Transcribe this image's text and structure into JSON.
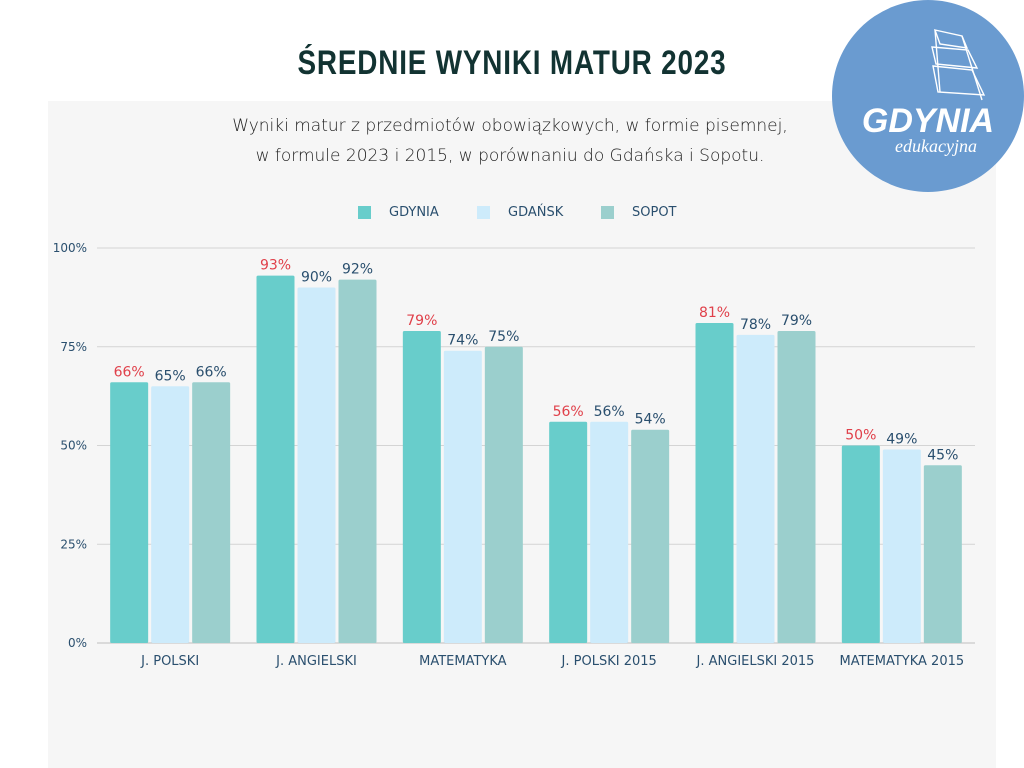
{
  "header": {
    "title": "ŚREDNIE WYNIKI MATUR 2023",
    "subtitle_line1": "Wyniki matur z przedmiotów obowiązkowych, w formie pisemnej,",
    "subtitle_line2": "w formule 2023 i 2015, w porównaniu do Gdańska i Sopotu."
  },
  "logo": {
    "text_main": "GDYNIA",
    "text_sub": "edukacyjna",
    "icon": "sailing-ship-icon",
    "background_color": "#6a9bd0"
  },
  "colors": {
    "gdynia": "#68cdcb",
    "gdansk": "#cdebfb",
    "sopot": "#9bcfcd",
    "gdynia_label": "#e0404a",
    "other_label": "#2a4f6e",
    "axis_text": "#2a4f6e",
    "title": "#123332"
  },
  "chart_data": {
    "type": "bar",
    "title": "ŚREDNIE WYNIKI MATUR 2023",
    "subtitle": "Wyniki matur z przedmiotów obowiązkowych, w formie pisemnej, w formule 2023 i 2015, w porównaniu do Gdańska i Sopotu.",
    "xlabel": "",
    "ylabel": "",
    "categories": [
      "J. POLSKI",
      "J. ANGIELSKI",
      "MATEMATYKA",
      "J. POLSKI 2015",
      "J. ANGIELSKI 2015",
      "MATEMATYKA 2015"
    ],
    "series": [
      {
        "name": "GDYNIA",
        "values": [
          66,
          93,
          79,
          56,
          81,
          50
        ]
      },
      {
        "name": "GDAŃSK",
        "values": [
          65,
          90,
          74,
          56,
          78,
          49
        ]
      },
      {
        "name": "SOPOT",
        "values": [
          66,
          92,
          75,
          54,
          79,
          45
        ]
      }
    ],
    "value_suffix": "%",
    "ylim": [
      0,
      100
    ],
    "yticks": [
      0,
      25,
      50,
      75,
      100
    ],
    "ytick_labels": [
      "0%",
      "25%",
      "50%",
      "75%",
      "100%"
    ],
    "grid": true,
    "legend_position": "top-center"
  }
}
